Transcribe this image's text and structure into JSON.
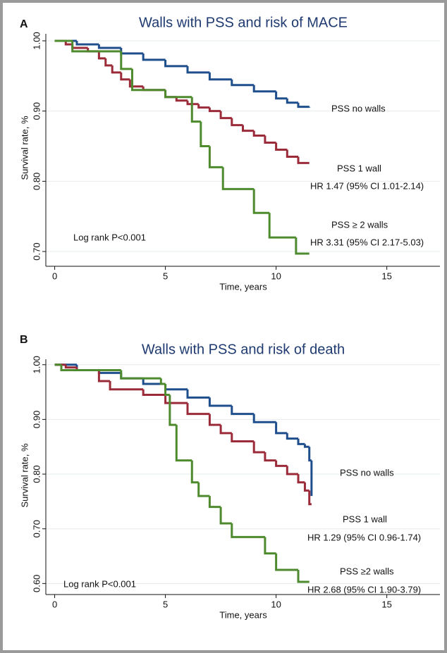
{
  "chart_data": [
    {
      "type": "step",
      "panel": "A",
      "title": "Walls with PSS and risk of MACE",
      "xlabel": "Time, years",
      "ylabel": "Survival rate, %",
      "note": "Log rank P<0.001",
      "xlim": [
        -0.4,
        17.4
      ],
      "ylim": [
        0.685,
        1.01
      ],
      "xticks": [
        0,
        5,
        10,
        15
      ],
      "yticks": [
        {
          "value": 1.0,
          "label": "1.00"
        },
        {
          "value": 0.9,
          "label": "0.90"
        },
        {
          "value": 0.8,
          "label": "0.80"
        },
        {
          "value": 0.7,
          "label": "0.70"
        }
      ],
      "grid": true,
      "series": [
        {
          "name": "PSS no walls",
          "color": "#1f4e8c",
          "x": [
            0,
            1,
            2,
            3,
            4,
            5,
            6,
            7,
            8,
            9,
            10,
            10.5,
            11,
            11.5
          ],
          "values": [
            1.0,
            0.995,
            0.99,
            0.982,
            0.973,
            0.964,
            0.955,
            0.945,
            0.937,
            0.928,
            0.918,
            0.912,
            0.906,
            0.905
          ]
        },
        {
          "name": "PSS 1 wall",
          "color": "#9c2b3a",
          "annotation": "HR 1.47 (95% CI 1.01-2.14)",
          "x": [
            0,
            0.5,
            0.8,
            1.5,
            2,
            2.3,
            2.6,
            3,
            3.4,
            4,
            5,
            5.5,
            6,
            6.5,
            7,
            7.5,
            8,
            8.5,
            9,
            9.5,
            10,
            10.5,
            11,
            11.5
          ],
          "values": [
            1.0,
            0.995,
            0.99,
            0.985,
            0.975,
            0.965,
            0.955,
            0.945,
            0.935,
            0.93,
            0.92,
            0.915,
            0.91,
            0.905,
            0.9,
            0.89,
            0.88,
            0.872,
            0.865,
            0.855,
            0.845,
            0.835,
            0.826,
            0.826
          ]
        },
        {
          "name": "PSS ≥ 2 walls",
          "color": "#4e8a2e",
          "annotation": "HR 3.31 (95% CI 2.17-5.03)",
          "x": [
            0,
            0.8,
            3,
            3.5,
            5,
            6.2,
            6.6,
            7,
            7.6,
            9,
            9.7,
            10.9,
            11.5
          ],
          "values": [
            1.0,
            0.985,
            0.96,
            0.93,
            0.92,
            0.885,
            0.85,
            0.82,
            0.789,
            0.755,
            0.72,
            0.697,
            0.697
          ]
        }
      ]
    },
    {
      "type": "step",
      "panel": "B",
      "title": "Walls with PSS and risk of death",
      "xlabel": "Time, years",
      "ylabel": "Survival rate, %",
      "note": "Log rank P<0.001",
      "xlim": [
        -0.4,
        17.4
      ],
      "ylim": [
        0.585,
        1.01
      ],
      "xticks": [
        0,
        5,
        10,
        15
      ],
      "yticks": [
        {
          "value": 1.0,
          "label": "1.00"
        },
        {
          "value": 0.9,
          "label": "0.90"
        },
        {
          "value": 0.8,
          "label": "0.80"
        },
        {
          "value": 0.7,
          "label": "0.70"
        },
        {
          "value": 0.6,
          "label": "0.60"
        }
      ],
      "grid": true,
      "series": [
        {
          "name": "PSS no walls",
          "color": "#1f4e8c",
          "x": [
            0,
            1,
            2,
            3,
            4,
            5,
            6,
            7,
            8,
            9,
            10,
            10.5,
            11,
            11.3,
            11.5,
            11.6
          ],
          "values": [
            1.0,
            0.99,
            0.985,
            0.975,
            0.965,
            0.955,
            0.94,
            0.925,
            0.91,
            0.895,
            0.875,
            0.865,
            0.855,
            0.85,
            0.825,
            0.76
          ]
        },
        {
          "name": "PSS 1 wall",
          "color": "#9c2b3a",
          "annotation": "HR 1.29 (95% CI 0.96-1.74)",
          "x": [
            0,
            0.5,
            1,
            2,
            2.5,
            4,
            5,
            6,
            7,
            7.5,
            8,
            9,
            9.5,
            10,
            10.5,
            11,
            11.3,
            11.5,
            11.6
          ],
          "values": [
            1.0,
            0.995,
            0.99,
            0.97,
            0.955,
            0.945,
            0.93,
            0.91,
            0.89,
            0.875,
            0.86,
            0.84,
            0.825,
            0.815,
            0.8,
            0.785,
            0.77,
            0.745,
            0.745
          ]
        },
        {
          "name": "PSS ≥2 walls",
          "color": "#4e8a2e",
          "annotation": "HR 2.68 (95% CI 1.90-3.79)",
          "x": [
            0,
            0.3,
            3,
            4.8,
            5,
            5.2,
            5.5,
            6.2,
            6.5,
            7,
            7.5,
            8,
            9.5,
            10,
            11,
            11.5
          ],
          "values": [
            1.0,
            0.99,
            0.975,
            0.965,
            0.945,
            0.89,
            0.825,
            0.785,
            0.76,
            0.74,
            0.71,
            0.685,
            0.655,
            0.625,
            0.603,
            0.603
          ]
        }
      ]
    }
  ]
}
